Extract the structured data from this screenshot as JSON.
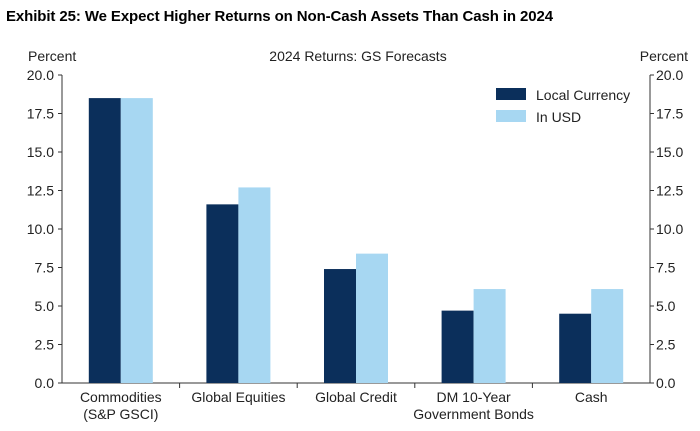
{
  "exhibit_title": "Exhibit 25: We Expect Higher Returns on Non-Cash Assets Than Cash in 2024",
  "chart_data": {
    "type": "bar",
    "title": "2024 Returns: GS Forecasts",
    "ylabel_left": "Percent",
    "ylabel_right": "Percent",
    "ylim": [
      0,
      20
    ],
    "yticks": [
      "0.0",
      "2.5",
      "5.0",
      "7.5",
      "10.0",
      "12.5",
      "15.0",
      "17.5",
      "20.0"
    ],
    "categories": [
      [
        "Commodities",
        "(S&P GSCI)"
      ],
      [
        "Global Equities"
      ],
      [
        "Global Credit"
      ],
      [
        "DM 10-Year",
        "Government Bonds"
      ],
      [
        "Cash"
      ]
    ],
    "series": [
      {
        "name": "Local Currency",
        "color": "#0b2f5b",
        "values": [
          18.5,
          11.6,
          7.4,
          4.7,
          4.5
        ]
      },
      {
        "name": "In USD",
        "color": "#a7d7f2",
        "values": [
          18.5,
          12.7,
          8.4,
          6.1,
          6.1
        ]
      }
    ],
    "legend_position": "top-right"
  }
}
